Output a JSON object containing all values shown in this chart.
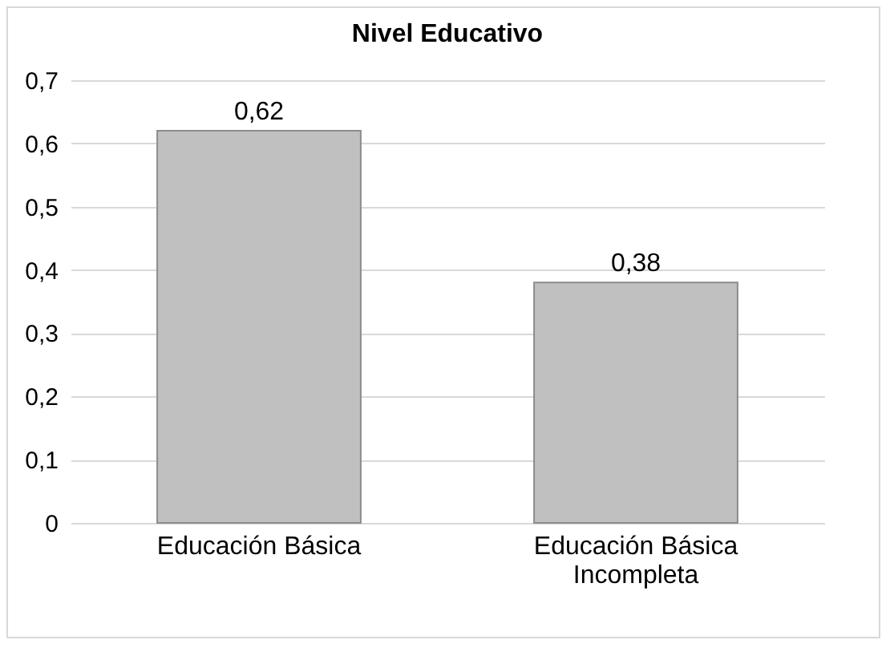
{
  "chart_data": {
    "type": "bar",
    "title": "Nivel Educativo",
    "categories": [
      "Educación Básica",
      "Educación Básica Incompleta"
    ],
    "values": [
      0.62,
      0.38
    ],
    "color": "#c0c0c0",
    "value_labels": [
      "0,62",
      "0,38"
    ],
    "ylim": [
      0,
      0.7
    ],
    "yticks": [
      0,
      {
        "value": 0.1,
        "label": "0,1"
      },
      {
        "value": 0.2,
        "label": "0,2"
      },
      {
        "value": 0.3,
        "label": "0,3"
      },
      {
        "value": 0.4,
        "label": "0,4"
      },
      {
        "value": 0.5,
        "label": "0,5"
      },
      {
        "value": 0.6,
        "label": "0,6"
      },
      {
        "value": 0.7,
        "label": "0,7"
      }
    ],
    "grid": "y"
  }
}
